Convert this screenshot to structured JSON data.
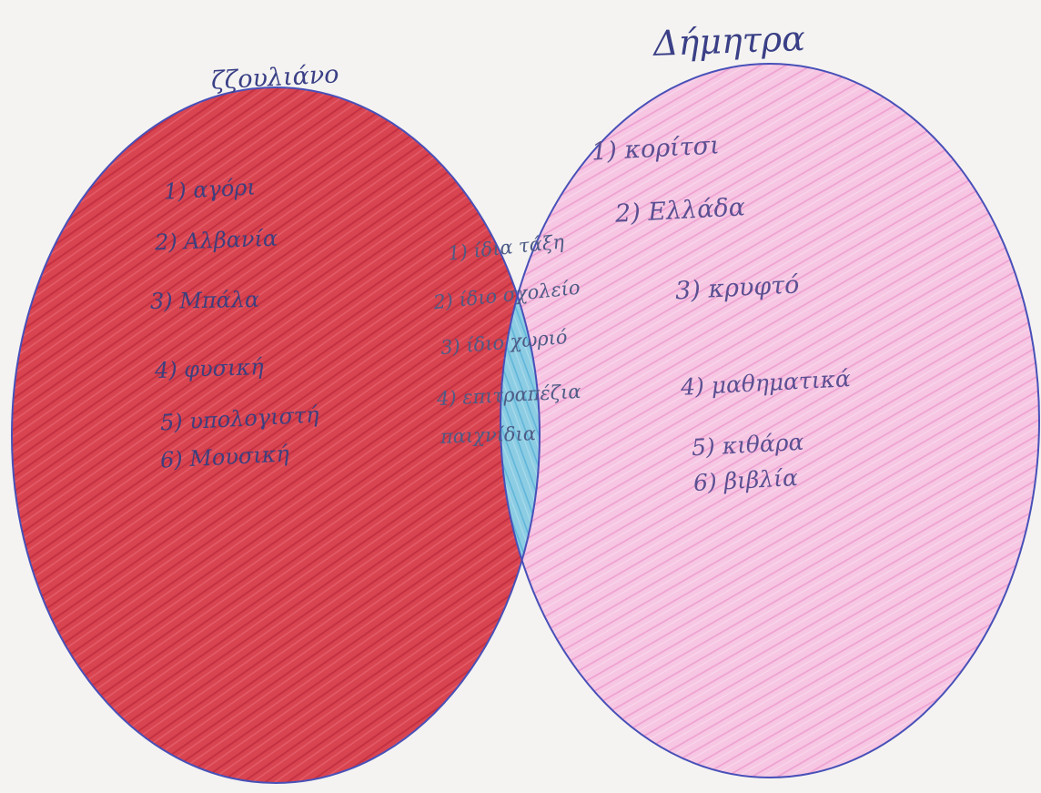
{
  "left_set": {
    "title": "ζζουλιάνο",
    "items": [
      "1) αγόρι",
      "2) Αλβανία",
      "3) Μπάλα",
      "4) φυσική",
      "5) υπολογιστή",
      "6) Μουσική"
    ]
  },
  "right_set": {
    "title": "Δήμητρα",
    "items": [
      "1) κορίτσι",
      "2) Ελλάδα",
      "3) κρυφτό",
      "4) μαθηματικά",
      "5) κιθάρα",
      "6) βιβλία"
    ]
  },
  "intersection": {
    "items": [
      "1) ίδια τάξη",
      "2) ίδιο σχολείο",
      "3) ίδιο χωριό",
      "4) επιτραπέζια",
      "παιχνίδια"
    ]
  },
  "colors": {
    "left_fill": "#d84450",
    "right_fill": "#f3b7dd",
    "intersection_fill": "#7fc4de",
    "outline": "#4850b8"
  }
}
